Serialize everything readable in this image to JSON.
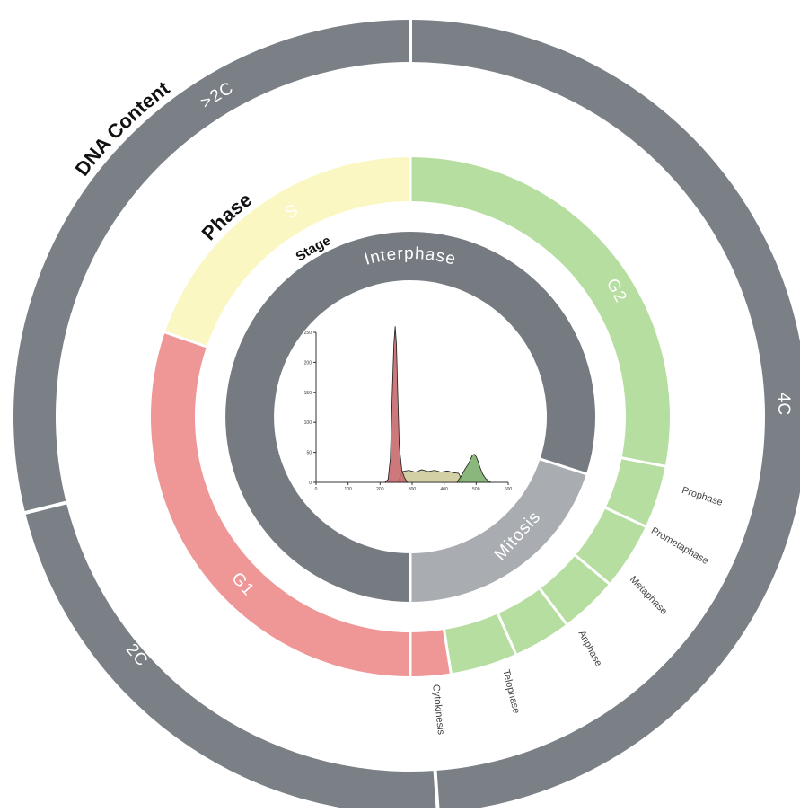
{
  "colors": {
    "outer_ring": "#7a8086",
    "stage_interphase": "#757b81",
    "stage_mitosis": "#a9adb1",
    "g1": "#ef9696",
    "s": "#fbf7c3",
    "g2": "#b6dea0",
    "divider": "#ffffff",
    "hist_g1": "#c86a6e",
    "hist_s": "#cfcb9c",
    "hist_g2": "#7daf6e"
  },
  "ring_titles": {
    "dna_content": "DNA Content",
    "phase": "Phase",
    "stage": "Stage"
  },
  "dna_content": {
    "segments": [
      {
        "label": ">2C"
      },
      {
        "label": "4C"
      },
      {
        "label": "2C"
      }
    ]
  },
  "phase": {
    "segments": [
      {
        "label": "G1"
      },
      {
        "label": "S"
      },
      {
        "label": "G2"
      }
    ]
  },
  "stage": {
    "segments": [
      {
        "label": "Interphase"
      },
      {
        "label": "Mitosis"
      }
    ]
  },
  "mitosis_substages": [
    {
      "label": "Prophase"
    },
    {
      "label": "Prometaphase"
    },
    {
      "label": "Metaphase"
    },
    {
      "label": "Anphase"
    },
    {
      "label": "Telophase"
    },
    {
      "label": "Cytokinesis"
    }
  ],
  "chart_data": {
    "type": "area",
    "title": "",
    "xlabel": "",
    "ylabel": "",
    "xlim": [
      0,
      600
    ],
    "ylim": [
      0,
      250
    ],
    "x_ticks": [
      "0",
      "100",
      "200",
      "300",
      "400",
      "500",
      "600"
    ],
    "y_ticks": [
      "0",
      "50",
      "100",
      "150",
      "200",
      "250"
    ],
    "series": [
      {
        "x": [
          215,
          225,
          232,
          238,
          243,
          247,
          251,
          255,
          260,
          268,
          276,
          285
        ],
        "values": [
          0,
          5,
          40,
          150,
          230,
          260,
          230,
          150,
          60,
          20,
          8,
          0
        ]
      },
      {
        "x": [
          255,
          270,
          290,
          310,
          330,
          350,
          370,
          390,
          410,
          430,
          445,
          460
        ],
        "values": [
          0,
          18,
          20,
          17,
          21,
          18,
          20,
          17,
          19,
          16,
          15,
          0
        ]
      },
      {
        "x": [
          440,
          455,
          465,
          475,
          482,
          488,
          494,
          500,
          506,
          512,
          520,
          530,
          545
        ],
        "values": [
          0,
          12,
          22,
          30,
          38,
          45,
          47,
          43,
          35,
          25,
          14,
          6,
          0
        ]
      }
    ]
  }
}
